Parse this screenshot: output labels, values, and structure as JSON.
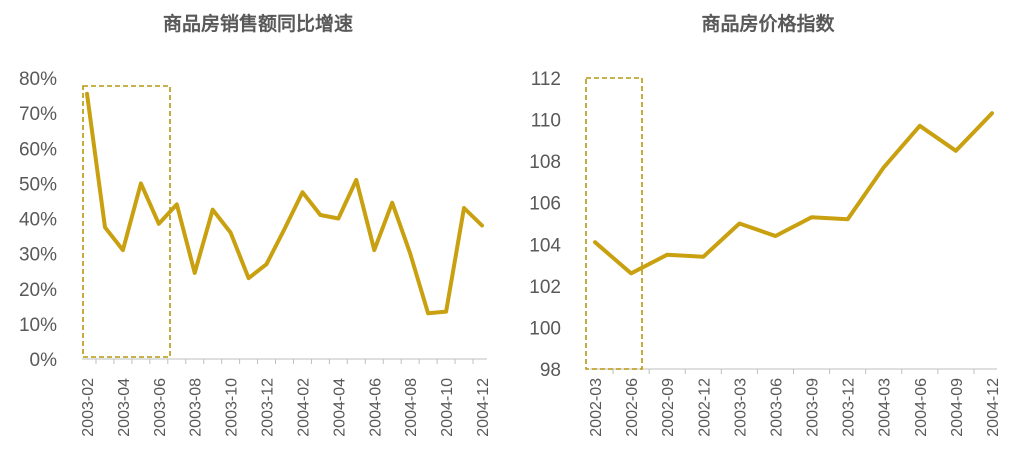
{
  "colors": {
    "line": "#c9a010",
    "axis": "#bfbfbf",
    "text": "#595959",
    "highlight": "#b8960c"
  },
  "chart_data": [
    {
      "type": "line",
      "title": "商品房销售额同比增速",
      "ylim": [
        0,
        80
      ],
      "yticks": [
        0,
        10,
        20,
        30,
        40,
        50,
        60,
        70,
        80
      ],
      "ytick_labels": [
        "0%",
        "10%",
        "20%",
        "30%",
        "40%",
        "50%",
        "60%",
        "70%",
        "80%"
      ],
      "x_tick_labels": [
        "2003-02",
        "2003-04",
        "2003-06",
        "2003-08",
        "2003-10",
        "2003-12",
        "2004-02",
        "2004-04",
        "2004-06",
        "2004-08",
        "2004-10",
        "2004-12"
      ],
      "x": [
        "2003-02",
        "2003-03",
        "2003-04",
        "2003-05",
        "2003-06",
        "2003-07",
        "2003-08",
        "2003-09",
        "2003-10",
        "2003-11",
        "2003-12",
        "2004-01",
        "2004-02",
        "2004-03",
        "2004-04",
        "2004-05",
        "2004-06",
        "2004-07",
        "2004-08",
        "2004-09",
        "2004-10",
        "2004-11",
        "2004-12"
      ],
      "series": [
        {
          "values": [
            75.5,
            37.5,
            31,
            50,
            38.5,
            44,
            24.5,
            42.5,
            36,
            23,
            27,
            37,
            47.5,
            41,
            40,
            51,
            31,
            44.5,
            30,
            13,
            13.5,
            43,
            38
          ]
        }
      ],
      "highlight_range": [
        "2003-02",
        "2003-07"
      ],
      "grid": false
    },
    {
      "type": "line",
      "title": "商品房价格指数",
      "ylim": [
        98,
        112
      ],
      "yticks": [
        98,
        100,
        102,
        104,
        106,
        108,
        110,
        112
      ],
      "ytick_labels": [
        "98",
        "100",
        "102",
        "104",
        "106",
        "108",
        "110",
        "112"
      ],
      "x": [
        "2002-03",
        "2002-06",
        "2002-09",
        "2002-12",
        "2003-03",
        "2003-06",
        "2003-09",
        "2003-12",
        "2004-03",
        "2004-06",
        "2004-09",
        "2004-12"
      ],
      "x_tick_labels": [
        "2002-03",
        "2002-06",
        "2002-09",
        "2002-12",
        "2003-03",
        "2003-06",
        "2003-09",
        "2003-12",
        "2004-03",
        "2004-06",
        "2004-09",
        "2004-12"
      ],
      "series": [
        {
          "values": [
            104.1,
            102.6,
            103.5,
            103.4,
            105.0,
            104.4,
            105.3,
            105.2,
            107.7,
            109.7,
            108.5,
            110.3
          ]
        }
      ],
      "highlight_range": [
        "2002-03",
        "2002-06"
      ],
      "grid": false
    }
  ]
}
